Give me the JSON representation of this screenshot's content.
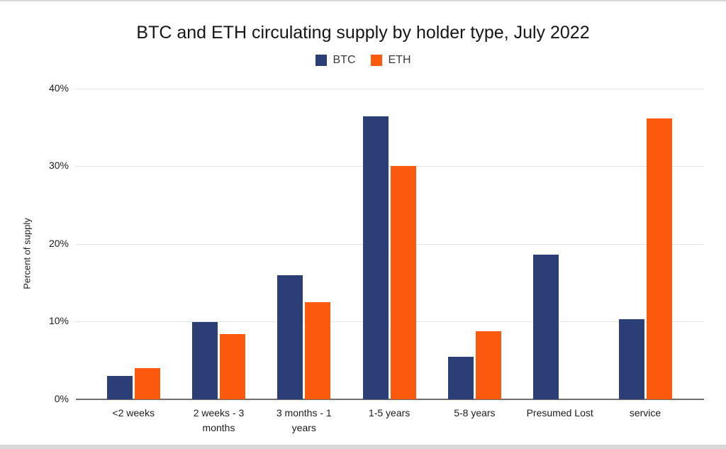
{
  "chart_data": {
    "type": "bar",
    "title": "BTC and ETH circulating supply by holder type, July 2022",
    "categories": [
      "<2 weeks",
      "2 weeks - 3 months",
      "3 months - 1 years",
      "1-5 years",
      "5-8 years",
      "Presumed Lost",
      "service"
    ],
    "series": [
      {
        "name": "BTC",
        "color": "#2b3f76",
        "values": [
          3.0,
          9.9,
          16.0,
          36.4,
          5.5,
          18.6,
          10.3
        ]
      },
      {
        "name": "ETH",
        "color": "#fb5a0e",
        "values": [
          4.0,
          8.4,
          12.5,
          30.0,
          8.8,
          0,
          36.1
        ]
      }
    ],
    "xlabel": "",
    "ylabel": "Percent of supply",
    "ylim": [
      0,
      40
    ],
    "ytick_step": 10,
    "ytick_suffix": "%",
    "grid": true,
    "legend_position": "top"
  }
}
